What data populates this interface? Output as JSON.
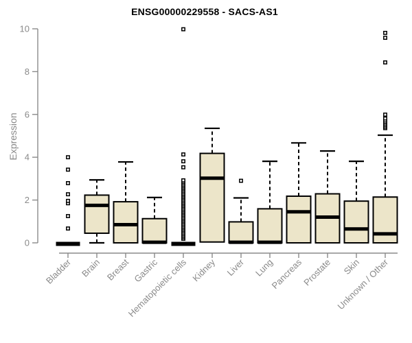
{
  "chart_data": {
    "type": "boxplot",
    "title": "ENSG00000229558 - SACS-AS1",
    "ylabel": "Expression",
    "xlabel": "",
    "ylim": [
      0,
      10
    ],
    "yticks": [
      0,
      2,
      4,
      6,
      8,
      10
    ],
    "grid": false,
    "legend": false,
    "categories": [
      "Bladder",
      "Brain",
      "Breast",
      "Gastric",
      "Hematopoietic cells",
      "Kidney",
      "Liver",
      "Lung",
      "Pancreas",
      "Prostate",
      "Skin",
      "Unknown / Other"
    ],
    "boxes": [
      {
        "category": "Bladder",
        "collapsed": true,
        "q1": 0,
        "median": 0,
        "q3": 0,
        "whisker_low": 0,
        "whisker_high": 0,
        "outliers": [
          0.67,
          1.25,
          1.85,
          1.96,
          2.27,
          2.79,
          3.42,
          4.0
        ]
      },
      {
        "category": "Brain",
        "collapsed": false,
        "q1": 0.45,
        "median": 1.75,
        "q3": 2.23,
        "whisker_low": 0,
        "whisker_high": 2.94,
        "outliers": []
      },
      {
        "category": "Breast",
        "collapsed": false,
        "q1": 0,
        "median": 0.85,
        "q3": 1.92,
        "whisker_low": 0,
        "whisker_high": 3.78,
        "outliers": []
      },
      {
        "category": "Gastric",
        "collapsed": false,
        "q1": 0,
        "median": 0.03,
        "q3": 1.13,
        "whisker_low": 0,
        "whisker_high": 2.12,
        "outliers": []
      },
      {
        "category": "Hematopoietic cells",
        "collapsed": true,
        "q1": 0,
        "median": 0,
        "q3": 0,
        "whisker_low": 0,
        "whisker_high": 0,
        "outliers": [
          0.19,
          0.26,
          0.33,
          0.4,
          0.47,
          0.54,
          0.61,
          0.68,
          0.75,
          0.82,
          0.89,
          0.96,
          1.03,
          1.1,
          1.17,
          1.24,
          1.31,
          1.38,
          1.45,
          1.52,
          1.59,
          1.66,
          1.73,
          1.8,
          1.87,
          1.94,
          2.01,
          2.08,
          2.15,
          2.22,
          2.29,
          2.36,
          2.43,
          2.5,
          2.57,
          2.64,
          2.71,
          2.78,
          2.85,
          2.92,
          3.53,
          3.81,
          4.13,
          9.98
        ]
      },
      {
        "category": "Kidney",
        "collapsed": false,
        "q1": 0.04,
        "median": 3.02,
        "q3": 4.18,
        "whisker_low": 0.04,
        "whisker_high": 5.35,
        "outliers": []
      },
      {
        "category": "Liver",
        "collapsed": false,
        "q1": 0,
        "median": 0.03,
        "q3": 0.98,
        "whisker_low": 0,
        "whisker_high": 2.1,
        "outliers": [
          2.9
        ]
      },
      {
        "category": "Lung",
        "collapsed": false,
        "q1": 0,
        "median": 0.03,
        "q3": 1.59,
        "whisker_low": 0,
        "whisker_high": 3.81,
        "outliers": []
      },
      {
        "category": "Pancreas",
        "collapsed": false,
        "q1": 0,
        "median": 1.45,
        "q3": 2.18,
        "whisker_low": 0,
        "whisker_high": 4.67,
        "outliers": []
      },
      {
        "category": "Prostate",
        "collapsed": false,
        "q1": 0,
        "median": 1.2,
        "q3": 2.29,
        "whisker_low": 0,
        "whisker_high": 4.29,
        "outliers": []
      },
      {
        "category": "Skin",
        "collapsed": false,
        "q1": 0,
        "median": 0.65,
        "q3": 1.95,
        "whisker_low": 0,
        "whisker_high": 3.81,
        "outliers": []
      },
      {
        "category": "Unknown / Other",
        "collapsed": false,
        "q1": 0,
        "median": 0.42,
        "q3": 2.14,
        "whisker_low": 0,
        "whisker_high": 5.03,
        "outliers": [
          5.36,
          5.43,
          5.5,
          5.57,
          5.64,
          5.72,
          5.81,
          5.99,
          8.43,
          9.58,
          9.81
        ]
      }
    ],
    "colors": {
      "box_fill": "#ECE5C9",
      "box_stroke": "#000000",
      "median": "#000000",
      "whisker": "#000000",
      "outlier_fill": "#FFFFFF",
      "axis": "#8A8A8A",
      "tick_label": "#8A8A8A",
      "title": "#000000",
      "background": "#FFFFFF"
    }
  }
}
